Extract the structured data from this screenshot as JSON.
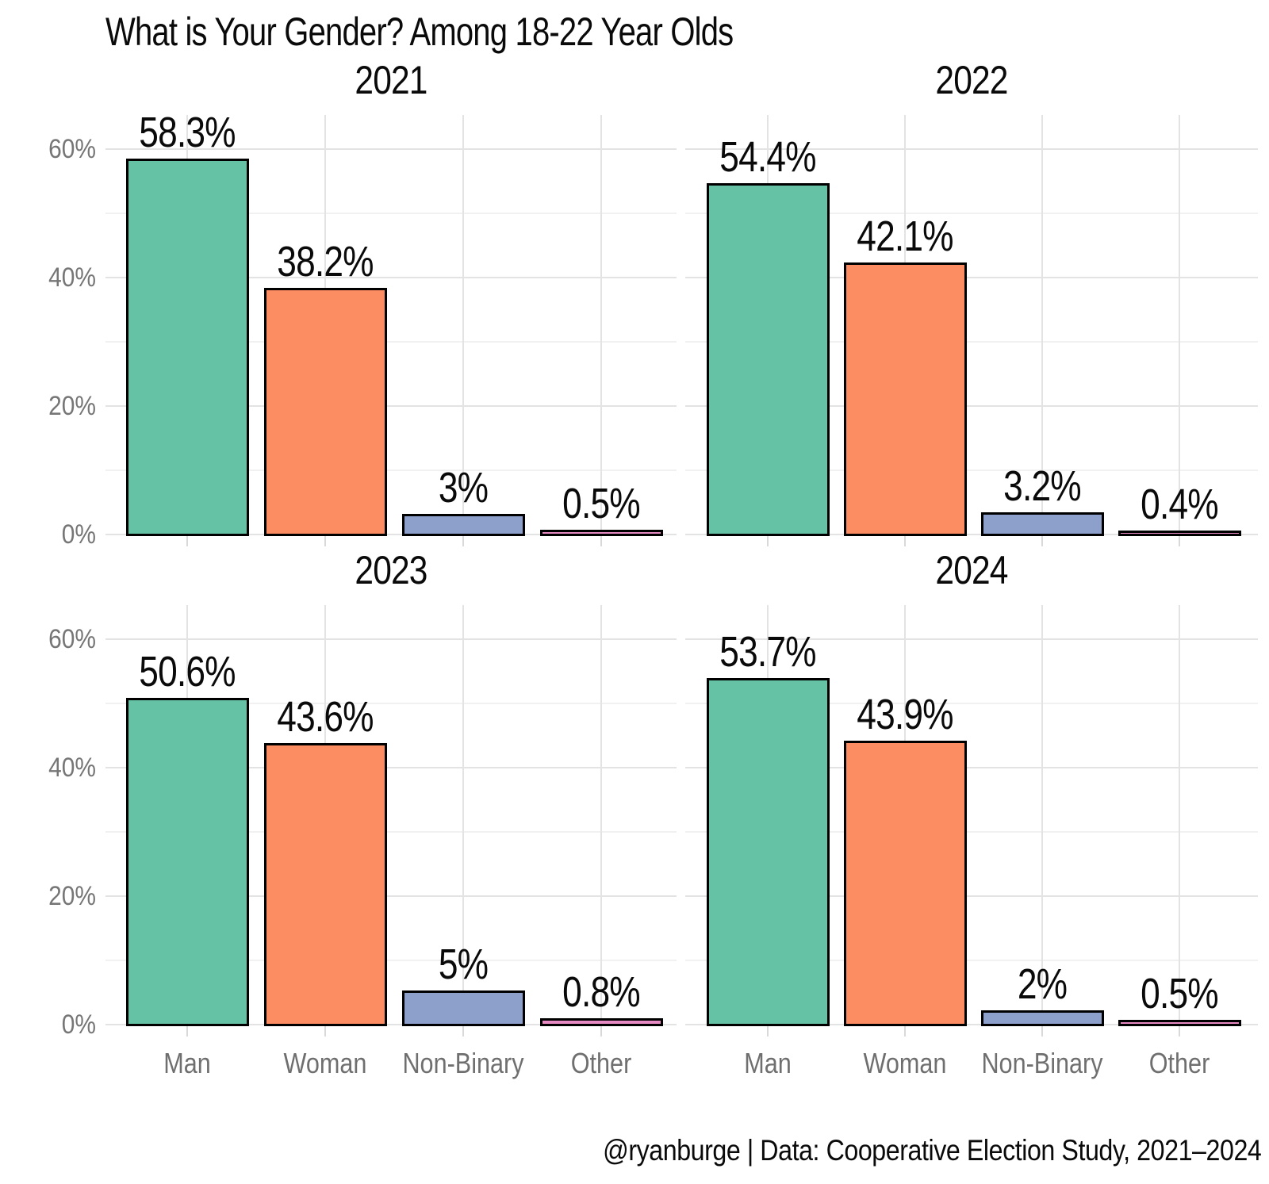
{
  "title": "What is Your Gender? Among 18-22 Year Olds",
  "footer": "@ryanburge | Data: Cooperative Election Study, 2021–2024",
  "chart_data": {
    "type": "bar",
    "title": "What is Your Gender? Among 18-22 Year Olds",
    "categories": [
      "Man",
      "Woman",
      "Non-Binary",
      "Other"
    ],
    "bar_colors": [
      "#66C2A5",
      "#FC8D62",
      "#8DA0CB",
      "#E78AC3"
    ],
    "bar_stroke_color": "#000000",
    "facets": [
      {
        "year": "2021",
        "values": [
          58.3,
          38.2,
          3,
          0.5
        ],
        "labels": [
          "58.3%",
          "38.2%",
          "3%",
          "0.5%"
        ]
      },
      {
        "year": "2022",
        "values": [
          54.4,
          42.1,
          3.2,
          0.4
        ],
        "labels": [
          "54.4%",
          "42.1%",
          "3.2%",
          "0.4%"
        ]
      },
      {
        "year": "2023",
        "values": [
          50.6,
          43.6,
          5,
          0.8
        ],
        "labels": [
          "50.6%",
          "43.6%",
          "5%",
          "0.8%"
        ]
      },
      {
        "year": "2024",
        "values": [
          53.7,
          43.9,
          2,
          0.5
        ],
        "labels": [
          "53.7%",
          "43.9%",
          "2%",
          "0.5%"
        ]
      }
    ],
    "y_axis": {
      "ylim": [
        0,
        65
      ],
      "major_ticks": [
        0,
        20,
        40,
        60
      ],
      "tick_labels": [
        "0%",
        "20%",
        "40%",
        "60%"
      ],
      "minor_ticks": [
        10,
        30,
        50
      ],
      "grid": true,
      "grid_major_color": "#e3e3e3",
      "grid_minor_color": "#f1f1f1",
      "axis_text_color": "#767676"
    },
    "legend": "none",
    "source": "@ryanburge | Data: Cooperative Election Study, 2021–2024"
  }
}
